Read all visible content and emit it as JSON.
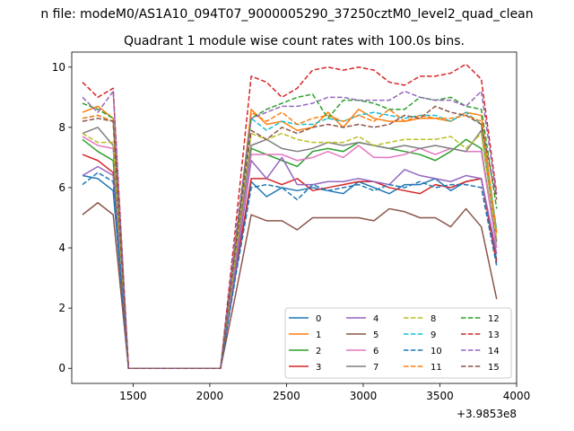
{
  "header": {
    "suptitle": "n file: modeM0/AS1A10_094T07_9000005290_37250cztM0_level2_quad_clean",
    "offset_label": "+3.9853e8"
  },
  "chart_data": {
    "type": "line",
    "title": "Quadrant 1 module wise count rates with 100.0s bins.",
    "xlabel": "",
    "ylabel": "",
    "xlim": [
      1100,
      4000
    ],
    "ylim": [
      -0.5,
      10.5
    ],
    "x_offset": 398530000,
    "x_ticks": [
      1500,
      2000,
      2500,
      3000,
      3500,
      4000
    ],
    "x_tick_labels": [
      "1500",
      "2000",
      "2500",
      "3000",
      "3500",
      "4000"
    ],
    "y_ticks": [
      0,
      2,
      4,
      6,
      8,
      10
    ],
    "y_tick_labels": [
      "0",
      "2",
      "4",
      "6",
      "8",
      "10"
    ],
    "grid": false,
    "legend_position": "lower-right",
    "x": [
      1170,
      1270,
      1370,
      1470,
      1570,
      1670,
      1770,
      1870,
      1970,
      2070,
      2170,
      2270,
      2370,
      2470,
      2570,
      2670,
      2770,
      2870,
      2970,
      3070,
      3170,
      3270,
      3370,
      3470,
      3570,
      3670,
      3770,
      3870
    ],
    "series": [
      {
        "name": "0",
        "color": "#1f77b4",
        "dash": "solid",
        "values": [
          6.4,
          6.3,
          5.9,
          0,
          0,
          0,
          0,
          0,
          0,
          0,
          3.2,
          6.2,
          5.7,
          6.0,
          5.9,
          6.0,
          5.9,
          5.8,
          6.2,
          6.0,
          5.8,
          6.1,
          6.1,
          6.3,
          5.9,
          6.2,
          6.3,
          3.6
        ]
      },
      {
        "name": "1",
        "color": "#ff7f0e",
        "dash": "solid",
        "values": [
          8.5,
          8.7,
          8.3,
          0,
          0,
          0,
          0,
          0,
          0,
          0,
          4.1,
          8.6,
          8.1,
          8.2,
          7.9,
          8.0,
          8.5,
          8.0,
          8.6,
          8.3,
          8.2,
          8.2,
          8.3,
          8.3,
          8.2,
          8.5,
          8.4,
          4.5
        ]
      },
      {
        "name": "2",
        "color": "#2ca02c",
        "dash": "solid",
        "values": [
          7.6,
          7.2,
          6.9,
          0,
          0,
          0,
          0,
          0,
          0,
          0,
          3.6,
          7.3,
          7.1,
          6.9,
          6.7,
          7.2,
          7.3,
          7.2,
          7.5,
          7.4,
          7.3,
          7.2,
          7.1,
          6.9,
          7.2,
          7.6,
          7.3,
          4.0
        ]
      },
      {
        "name": "3",
        "color": "#d62728",
        "dash": "solid",
        "values": [
          7.1,
          6.9,
          6.5,
          0,
          0,
          0,
          0,
          0,
          0,
          0,
          3.3,
          6.3,
          6.3,
          6.1,
          6.3,
          5.9,
          6.0,
          6.1,
          6.2,
          6.2,
          6.0,
          5.9,
          5.8,
          6.1,
          6.0,
          6.2,
          6.3,
          3.5
        ]
      },
      {
        "name": "4",
        "color": "#9467bd",
        "dash": "solid",
        "values": [
          6.4,
          6.7,
          6.4,
          0,
          0,
          0,
          0,
          0,
          0,
          0,
          3.4,
          6.9,
          6.3,
          7.0,
          6.1,
          6.1,
          6.2,
          6.2,
          6.3,
          6.2,
          6.1,
          6.6,
          6.4,
          6.3,
          6.2,
          6.4,
          6.3,
          3.8
        ]
      },
      {
        "name": "5",
        "color": "#8c564b",
        "dash": "solid",
        "values": [
          5.1,
          5.5,
          5.1,
          0,
          0,
          0,
          0,
          0,
          0,
          0,
          2.5,
          5.1,
          4.9,
          4.9,
          4.6,
          5.0,
          5.0,
          5.0,
          5.0,
          4.9,
          5.3,
          5.2,
          5.0,
          5.0,
          4.7,
          5.3,
          4.7,
          2.3
        ]
      },
      {
        "name": "6",
        "color": "#e377c2",
        "dash": "solid",
        "values": [
          7.7,
          7.4,
          7.3,
          0,
          0,
          0,
          0,
          0,
          0,
          0,
          3.7,
          7.1,
          7.1,
          7.1,
          6.9,
          7.0,
          7.2,
          7.0,
          7.4,
          7.0,
          7.0,
          7.1,
          7.3,
          7.1,
          7.3,
          7.2,
          7.2,
          4.0
        ]
      },
      {
        "name": "7",
        "color": "#7f7f7f",
        "dash": "solid",
        "values": [
          7.8,
          8.0,
          7.4,
          0,
          0,
          0,
          0,
          0,
          0,
          0,
          3.8,
          7.4,
          7.6,
          7.3,
          7.2,
          7.3,
          7.5,
          7.4,
          7.5,
          7.4,
          7.3,
          7.4,
          7.3,
          7.4,
          7.3,
          7.2,
          7.9,
          4.2
        ]
      },
      {
        "name": "8",
        "color": "#bcbd22",
        "dash": "dashed",
        "values": [
          7.8,
          7.5,
          7.5,
          0,
          0,
          0,
          0,
          0,
          0,
          0,
          3.9,
          7.8,
          7.6,
          7.8,
          7.6,
          7.5,
          7.5,
          7.5,
          7.7,
          7.4,
          7.5,
          7.6,
          7.6,
          7.6,
          7.7,
          7.3,
          7.8,
          4.3
        ]
      },
      {
        "name": "9",
        "color": "#17becf",
        "dash": "dashed",
        "values": [
          8.3,
          8.4,
          8.2,
          0,
          0,
          0,
          0,
          0,
          0,
          0,
          4.2,
          8.3,
          7.9,
          8.2,
          8.1,
          8.1,
          8.3,
          8.2,
          8.4,
          8.5,
          8.4,
          8.3,
          8.4,
          8.4,
          8.2,
          8.5,
          8.1,
          4.6
        ]
      },
      {
        "name": "10",
        "color": "#1f77b4",
        "dash": "dashed",
        "values": [
          6.1,
          6.5,
          6.2,
          0,
          0,
          0,
          0,
          0,
          0,
          0,
          3.1,
          6.0,
          6.1,
          6.0,
          5.6,
          6.1,
          5.9,
          6.0,
          6.1,
          5.9,
          6.1,
          6.0,
          6.2,
          6.0,
          6.1,
          6.1,
          6.0,
          3.4
        ]
      },
      {
        "name": "11",
        "color": "#ff7f0e",
        "dash": "dashed",
        "values": [
          8.3,
          8.4,
          8.2,
          0,
          0,
          0,
          0,
          0,
          0,
          0,
          4.2,
          8.5,
          8.2,
          8.5,
          8.1,
          8.3,
          8.4,
          8.2,
          8.4,
          8.2,
          8.6,
          8.2,
          8.4,
          8.3,
          8.3,
          8.4,
          8.2,
          4.5
        ]
      },
      {
        "name": "12",
        "color": "#2ca02c",
        "dash": "dashed",
        "values": [
          8.8,
          8.6,
          8.3,
          0,
          0,
          0,
          0,
          0,
          0,
          0,
          4.2,
          8.3,
          8.6,
          8.8,
          9.0,
          9.1,
          8.3,
          8.9,
          8.9,
          8.8,
          8.6,
          8.6,
          9.0,
          8.9,
          9.0,
          8.7,
          8.6,
          5.3
        ]
      },
      {
        "name": "13",
        "color": "#d62728",
        "dash": "dashed",
        "values": [
          9.5,
          9.0,
          9.3,
          0,
          0,
          0,
          0,
          0,
          0,
          0,
          4.8,
          9.7,
          9.5,
          9.0,
          9.3,
          9.9,
          10.0,
          9.9,
          10.0,
          9.9,
          9.5,
          9.4,
          9.7,
          9.7,
          9.8,
          10.1,
          9.6,
          5.8
        ]
      },
      {
        "name": "14",
        "color": "#9467bd",
        "dash": "dashed",
        "values": [
          9.0,
          8.5,
          9.2,
          0,
          0,
          0,
          0,
          0,
          0,
          0,
          4.5,
          8.3,
          8.5,
          8.7,
          8.7,
          8.8,
          9.0,
          9.0,
          8.9,
          8.9,
          8.9,
          9.2,
          9.0,
          8.9,
          8.9,
          8.7,
          9.2,
          5.7
        ]
      },
      {
        "name": "15",
        "color": "#8c564b",
        "dash": "dashed",
        "values": [
          8.2,
          8.3,
          8.2,
          0,
          0,
          0,
          0,
          0,
          0,
          0,
          4.1,
          7.9,
          7.6,
          8.0,
          7.8,
          8.0,
          8.1,
          8.0,
          8.1,
          8.0,
          8.1,
          8.4,
          8.3,
          8.7,
          8.5,
          8.4,
          8.1,
          5.6
        ]
      }
    ]
  }
}
